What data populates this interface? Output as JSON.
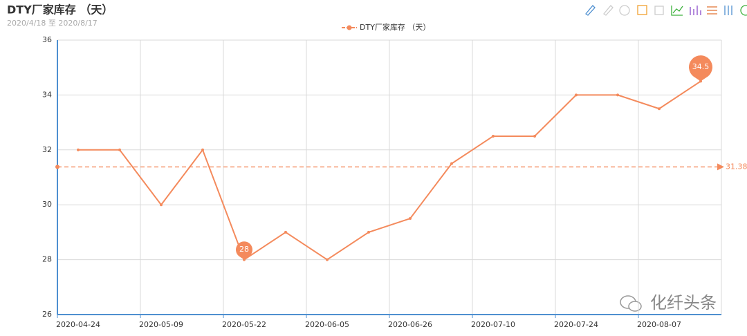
{
  "chart_data": {
    "type": "line",
    "title": "DTY厂家库存 （天）",
    "subtitle": "2020/4/18 至 2020/8/17",
    "categories": [
      "2020-04-24",
      null,
      "2020-05-09",
      null,
      "2020-05-22",
      null,
      "2020-06-05",
      null,
      "2020-06-26",
      null,
      "2020-07-10",
      null,
      "2020-07-24",
      null,
      "2020-08-07",
      null
    ],
    "series": [
      {
        "name": "DTY厂家库存 （天）",
        "color": "#f48a5c",
        "values": [
          32,
          32,
          30,
          32,
          28,
          29,
          28,
          29,
          29.5,
          31.5,
          32.5,
          32.5,
          34,
          34,
          33.5,
          34.5
        ]
      }
    ],
    "mark_points": [
      34.5,
      28
    ],
    "mark_line": 31.38,
    "ylim": [
      26,
      36
    ],
    "yticks": [
      26,
      28,
      30,
      32,
      34,
      36
    ],
    "grid": true,
    "watermark": "化纤头条"
  }
}
